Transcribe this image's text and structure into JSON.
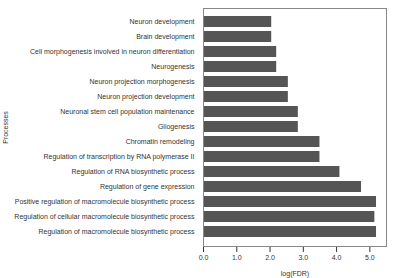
{
  "chart_data": {
    "type": "bar",
    "orientation": "horizontal",
    "categories": [
      "Regulation of macromolecule biosynthetic process",
      "Regulation of cellular macromolecule biosynthetic process",
      "Positive regulation of macromolecule biosynthetic process",
      "Regulation of gene expression",
      "Regulation of RNA biosynthetic process",
      "Regulation of transcription by RNA polymerase II",
      "Chromatin remodeling",
      "Gliogenesis",
      "Neuronal stem cell population maintenance",
      "Neuron projection development",
      "Neuron projection morphogenesis",
      "Neurogenesis",
      "Cell morphogenesis involved in neuron differentiation",
      "Brain development",
      "Neuron development"
    ],
    "values": [
      5.2,
      5.15,
      5.2,
      4.75,
      4.1,
      3.5,
      3.5,
      2.85,
      2.85,
      2.55,
      2.55,
      2.2,
      2.2,
      2.05,
      2.05
    ],
    "color": "#555555",
    "xlabel": "log(FDR)",
    "ylabel": "Processes",
    "xlim": [
      0,
      5.5
    ],
    "xticks": [
      0,
      1,
      2,
      3,
      4,
      5
    ],
    "grid": false
  }
}
